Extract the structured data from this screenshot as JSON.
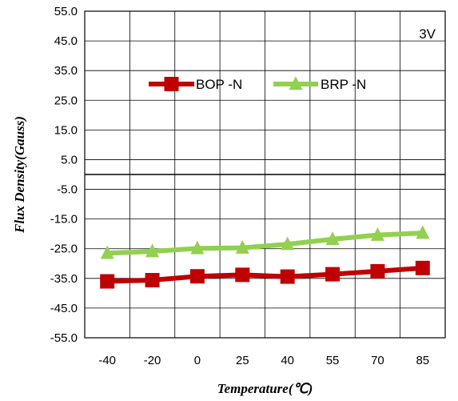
{
  "chart_data": {
    "type": "line",
    "title": "",
    "xlabel": "Temperature(℃)",
    "ylabel": "Flux Density(Gauss)",
    "categories": [
      "-40",
      "-20",
      "0",
      "25",
      "40",
      "55",
      "70",
      "85"
    ],
    "ylim": [
      -55,
      55
    ],
    "yticks": [
      "55.0",
      "45.0",
      "35.0",
      "25.0",
      "15.0",
      "5.0",
      "-5.0",
      "-15.0",
      "-25.0",
      "-35.0",
      "-45.0",
      "-55.0"
    ],
    "grid": true,
    "zero_line": true,
    "annotation": "3V",
    "legend_position": "top-center",
    "series": [
      {
        "name": "BOP -N",
        "values": [
          -36.0,
          -35.6,
          -34.3,
          -33.8,
          -34.4,
          -33.6,
          -32.6,
          -31.5
        ],
        "color": "#C00000",
        "marker": "square"
      },
      {
        "name": "BRP -N",
        "values": [
          -26.5,
          -25.9,
          -24.9,
          -24.7,
          -23.5,
          -21.8,
          -20.4,
          -19.7
        ],
        "color": "#92D050",
        "marker": "triangle"
      }
    ]
  }
}
